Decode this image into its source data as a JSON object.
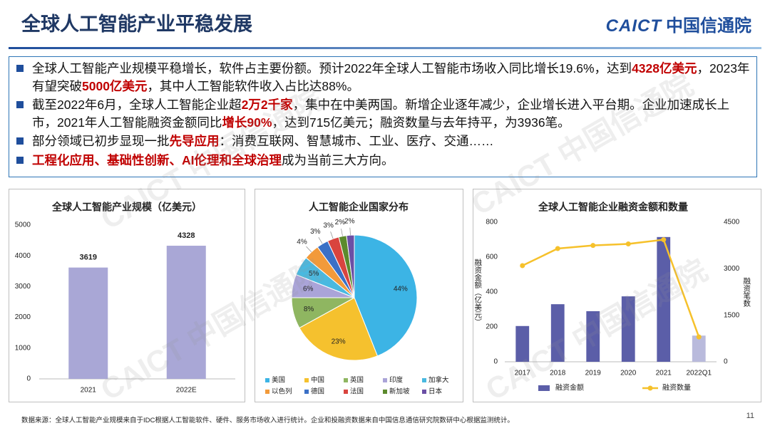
{
  "header": {
    "title": "全球人工智能产业平稳发展",
    "logo_en": "CAICT",
    "logo_cn": "中国信通院"
  },
  "bullets": [
    [
      {
        "text": "全球人工智能产业规模平稳增长，软件占主要份额。预计2022年全球人工智能市场收入同比增长19.6%，达到",
        "highlight": false
      },
      {
        "text": "4328亿美元",
        "highlight": true
      },
      {
        "text": "，2023年有望突破",
        "highlight": false
      },
      {
        "text": "5000亿美元",
        "highlight": true
      },
      {
        "text": "，其中人工智能软件收入占比达88%。",
        "highlight": false
      }
    ],
    [
      {
        "text": "截至2022年6月，全球人工智能企业超",
        "highlight": false
      },
      {
        "text": "2万2千家",
        "highlight": true
      },
      {
        "text": "，集中在中美两国。新增企业逐年减少，企业增长进入平台期。企业加速成长上市，2021年人工智能融资金额同比",
        "highlight": false
      },
      {
        "text": "增长90%",
        "highlight": true
      },
      {
        "text": "，达到715亿美元；融资数量与去年持平，为3936笔。",
        "highlight": false
      }
    ],
    [
      {
        "text": "部分领域已初步显现一批",
        "highlight": false
      },
      {
        "text": "先导应用",
        "highlight": true
      },
      {
        "text": "：消费互联网、智慧城市、工业、医疗、交通……",
        "highlight": false
      }
    ],
    [
      {
        "text": "工程化应用、基础性创新、AI伦理和全球治理",
        "highlight": true
      },
      {
        "text": "成为当前三大方向。",
        "highlight": false
      }
    ]
  ],
  "chart_data": [
    {
      "type": "bar",
      "title": "全球人工智能产业规模（亿美元）",
      "categories": [
        "2021",
        "2022E"
      ],
      "values": [
        3619,
        4328
      ],
      "color": "#a9a7d6",
      "ylim": [
        0,
        5000
      ],
      "yticks": [
        0,
        1000,
        2000,
        3000,
        4000,
        5000
      ],
      "grid": false
    },
    {
      "type": "pie",
      "title": "人工智能企业国家分布",
      "categories": [
        "美国",
        "中国",
        "英国",
        "印度",
        "加拿大",
        "以色列",
        "德国",
        "法国",
        "新加坡",
        "日本"
      ],
      "values": [
        44,
        23,
        8,
        6,
        5,
        4,
        3,
        3,
        2,
        2
      ],
      "value_labels": [
        "44%",
        "23%",
        "8%",
        "6%",
        "5%",
        "4%",
        "3%",
        "3%",
        "2%",
        "2%"
      ],
      "colors": [
        "#3cb4e5",
        "#f5c12e",
        "#8fb661",
        "#aaa4d8",
        "#49b9e0",
        "#f29a3a",
        "#3b70c6",
        "#d9443f",
        "#5c8a2d",
        "#6b4fa5"
      ]
    },
    {
      "type": "bar-line",
      "title": "全球人工智能企业融资金额和数量",
      "categories": [
        "2017",
        "2018",
        "2019",
        "2020",
        "2021",
        "2022Q1"
      ],
      "series": [
        {
          "name": "融资金额",
          "color": "#5b5ea8",
          "colors": [
            "#5b5ea8",
            "#5b5ea8",
            "#5b5ea8",
            "#5b5ea8",
            "#5b5ea8",
            "#b9badc"
          ],
          "values": [
            205,
            330,
            290,
            375,
            715,
            150
          ]
        },
        {
          "name": "融资数量",
          "color": "#f6c12b",
          "axis": "y2",
          "values": [
            3100,
            3650,
            3750,
            3800,
            3936,
            800
          ]
        }
      ],
      "ylabel": "融资金额（亿美元）",
      "y2label": "融资笔数",
      "ylim": [
        0,
        800
      ],
      "yticks": [
        0,
        200,
        400,
        600,
        800
      ],
      "y2lim": [
        0,
        4500
      ],
      "y2ticks": [
        0,
        1500,
        3000,
        4500
      ],
      "grid": false
    }
  ],
  "footer": "数据来源：全球人工智能产业规模来自于IDC根据人工智能软件、硬件、服务市场收入进行统计。企业和投融资数据来自中国信息通信研究院数研中心根据监测统计。",
  "page_number": "11",
  "watermark": "CAICT 中国信通院"
}
